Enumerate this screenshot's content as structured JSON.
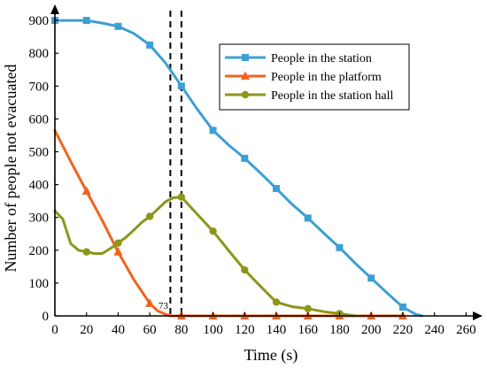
{
  "chart_data": {
    "type": "line",
    "xlabel": "Time (s)",
    "ylabel": "Number of people not evacuated",
    "xlim": [
      0,
      260
    ],
    "ylim": [
      0,
      900
    ],
    "xticks": [
      "0",
      "20",
      "40",
      "60",
      "80",
      "100",
      "120",
      "140",
      "160",
      "180",
      "200",
      "220",
      "240",
      "260"
    ],
    "yticks": [
      "0",
      "100",
      "200",
      "300",
      "400",
      "500",
      "600",
      "700",
      "800",
      "900"
    ],
    "grid": false,
    "legend_position": "top-right",
    "vlines": [
      73,
      80
    ],
    "annotation": "73",
    "series": [
      {
        "name": "People in the station",
        "color": "#3d9fd3",
        "marker": "square",
        "x": [
          0,
          10,
          20,
          30,
          40,
          50,
          60,
          70,
          80,
          90,
          100,
          110,
          120,
          130,
          140,
          150,
          160,
          170,
          180,
          190,
          200,
          210,
          220,
          228,
          232
        ],
        "y": [
          900,
          900,
          900,
          892,
          882,
          860,
          825,
          770,
          700,
          630,
          565,
          520,
          480,
          435,
          388,
          340,
          298,
          252,
          208,
          160,
          115,
          70,
          27,
          5,
          0
        ],
        "marker_x": [
          0,
          20,
          40,
          60,
          80,
          100,
          120,
          140,
          160,
          180,
          200,
          220
        ],
        "marker_y": [
          900,
          900,
          882,
          825,
          700,
          565,
          480,
          388,
          298,
          208,
          115,
          27
        ]
      },
      {
        "name": "People in the platform",
        "color": "#f0641e",
        "marker": "triangle",
        "x": [
          0,
          10,
          20,
          30,
          40,
          50,
          60,
          65,
          70,
          73,
          80,
          100,
          120,
          140,
          160,
          180,
          200,
          220
        ],
        "y": [
          565,
          470,
          380,
          290,
          195,
          110,
          38,
          15,
          5,
          0,
          0,
          0,
          0,
          0,
          0,
          0,
          0,
          0
        ],
        "marker_x": [
          20,
          40,
          60,
          80,
          100,
          120,
          140,
          160,
          180,
          200,
          220
        ],
        "marker_y": [
          380,
          195,
          38,
          0,
          0,
          0,
          0,
          0,
          0,
          0,
          0
        ]
      },
      {
        "name": "People in the station hall",
        "color": "#8c961a",
        "marker": "circle",
        "x": [
          0,
          5,
          10,
          15,
          20,
          25,
          30,
          35,
          40,
          45,
          50,
          55,
          60,
          65,
          70,
          75,
          80,
          90,
          100,
          110,
          120,
          130,
          140,
          150,
          160,
          170,
          180,
          190
        ],
        "y": [
          320,
          295,
          220,
          200,
          195,
          190,
          190,
          205,
          222,
          240,
          262,
          285,
          303,
          325,
          348,
          360,
          362,
          310,
          258,
          198,
          140,
          90,
          42,
          28,
          22,
          13,
          7,
          0
        ],
        "marker_x": [
          20,
          40,
          60,
          80,
          100,
          120,
          140,
          160,
          180
        ],
        "marker_y": [
          195,
          222,
          303,
          362,
          258,
          140,
          42,
          22,
          7
        ]
      }
    ]
  }
}
